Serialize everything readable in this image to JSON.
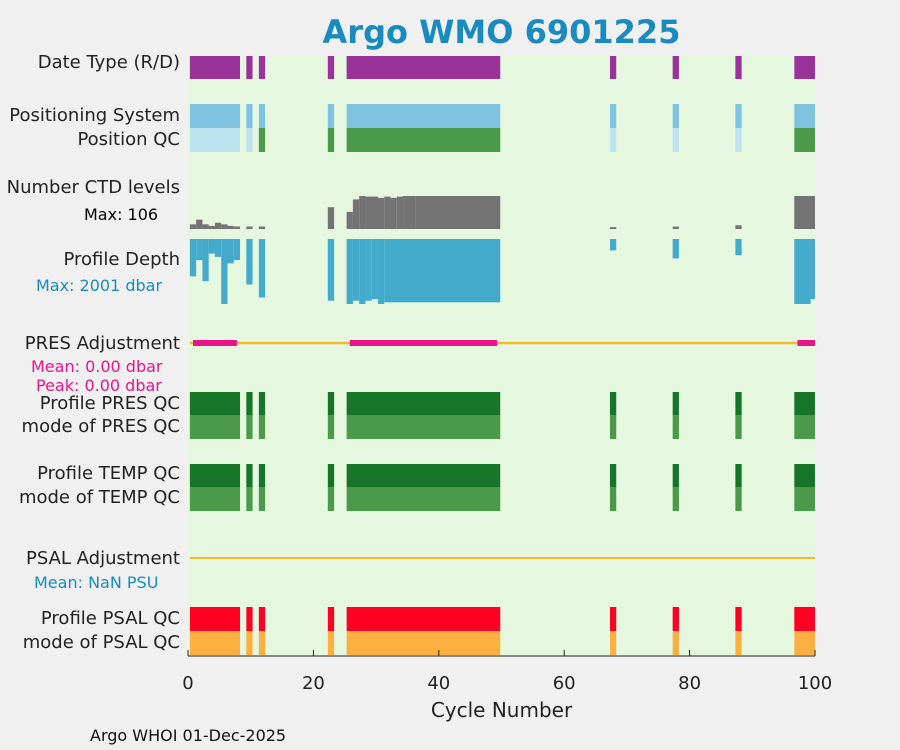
{
  "chart_data": {
    "type": "heatmap",
    "title": "Argo WMO 6901225",
    "xlabel": "Cycle Number",
    "xlim": [
      0,
      100
    ],
    "xticks": [
      "0",
      "20",
      "40",
      "60",
      "80",
      "100"
    ],
    "rows": [
      {
        "label": "Date Type (R/D)",
        "color": "#993399",
        "segments": [
          [
            0.3,
            8.3
          ],
          [
            9.3,
            10.3
          ],
          [
            11.3,
            12.3
          ],
          [
            22.3,
            23.3
          ],
          [
            25.3,
            49.8
          ],
          [
            67.3,
            68.3
          ],
          [
            77.3,
            78.3
          ],
          [
            87.3,
            88.3
          ],
          [
            96.7,
            100
          ]
        ]
      },
      {
        "label": "Positioning System",
        "color": "#80c3e0",
        "segments": [
          [
            0.3,
            8.3
          ],
          [
            9.3,
            10.3
          ],
          [
            11.3,
            12.3
          ],
          [
            22.3,
            23.3
          ],
          [
            25.3,
            49.8
          ],
          [
            67.3,
            68.3
          ],
          [
            77.3,
            78.3
          ],
          [
            87.3,
            88.3
          ],
          [
            96.7,
            100
          ]
        ]
      },
      {
        "label": "Position QC",
        "segments": [
          {
            "range": [
              0.3,
              8.3
            ],
            "color": "#bee3f0"
          },
          {
            "range": [
              9.3,
              10.3
            ],
            "color": "#bee3f0"
          },
          {
            "range": [
              11.3,
              12.3
            ],
            "color": "#4a9a4a"
          },
          {
            "range": [
              22.3,
              23.3
            ],
            "color": "#4a9a4a"
          },
          {
            "range": [
              25.3,
              49.8
            ],
            "color": "#4a9a4a"
          },
          {
            "range": [
              67.3,
              68.3
            ],
            "color": "#bee3f0"
          },
          {
            "range": [
              77.3,
              78.3
            ],
            "color": "#bee3f0"
          },
          {
            "range": [
              87.3,
              88.3
            ],
            "color": "#bee3f0"
          },
          {
            "range": [
              96.7,
              100
            ],
            "color": "#4a9a4a"
          }
        ]
      },
      {
        "label": "Profile PRES QC",
        "color": "#17752a",
        "segments": [
          [
            0.3,
            8.3
          ],
          [
            9.3,
            10.3
          ],
          [
            11.3,
            12.3
          ],
          [
            22.3,
            23.3
          ],
          [
            25.3,
            49.8
          ],
          [
            67.3,
            68.3
          ],
          [
            77.3,
            78.3
          ],
          [
            87.3,
            88.3
          ],
          [
            96.7,
            100
          ]
        ]
      },
      {
        "label": "mode of PRES QC",
        "color": "#4a9a4a",
        "segments": [
          [
            0.3,
            8.3
          ],
          [
            9.3,
            10.3
          ],
          [
            11.3,
            12.3
          ],
          [
            22.3,
            23.3
          ],
          [
            25.3,
            49.8
          ],
          [
            67.3,
            68.3
          ],
          [
            77.3,
            78.3
          ],
          [
            87.3,
            88.3
          ],
          [
            96.7,
            100
          ]
        ]
      },
      {
        "label": "Profile TEMP QC",
        "color": "#17752a",
        "segments": [
          [
            0.3,
            8.3
          ],
          [
            9.3,
            10.3
          ],
          [
            11.3,
            12.3
          ],
          [
            22.3,
            23.3
          ],
          [
            25.3,
            49.8
          ],
          [
            67.3,
            68.3
          ],
          [
            77.3,
            78.3
          ],
          [
            87.3,
            88.3
          ],
          [
            96.7,
            100
          ]
        ]
      },
      {
        "label": "mode of TEMP QC",
        "color": "#4a9a4a",
        "segments": [
          [
            0.3,
            8.3
          ],
          [
            9.3,
            10.3
          ],
          [
            11.3,
            12.3
          ],
          [
            22.3,
            23.3
          ],
          [
            25.3,
            49.8
          ],
          [
            67.3,
            68.3
          ],
          [
            77.3,
            78.3
          ],
          [
            87.3,
            88.3
          ],
          [
            96.7,
            100
          ]
        ]
      },
      {
        "label": "Profile PSAL QC",
        "color": "#ff0022",
        "segments": [
          [
            0.3,
            8.3
          ],
          [
            9.3,
            10.3
          ],
          [
            11.3,
            12.3
          ],
          [
            22.3,
            23.3
          ],
          [
            25.3,
            49.8
          ],
          [
            67.3,
            68.3
          ],
          [
            77.3,
            78.3
          ],
          [
            87.3,
            88.3
          ],
          [
            96.7,
            100
          ]
        ]
      },
      {
        "label": "mode of PSAL QC",
        "color": "#fbb040",
        "segments": [
          [
            0.3,
            8.3
          ],
          [
            9.3,
            10.3
          ],
          [
            11.3,
            12.3
          ],
          [
            22.3,
            23.3
          ],
          [
            25.3,
            49.8
          ],
          [
            67.3,
            68.3
          ],
          [
            77.3,
            78.3
          ],
          [
            87.3,
            88.3
          ],
          [
            96.7,
            100
          ]
        ]
      }
    ],
    "ctd_levels": {
      "label": "Number CTD levels",
      "max_label": "Max: 106",
      "max": 106,
      "color": "#737373",
      "bars": [
        [
          0.3,
          1.3,
          15
        ],
        [
          1.3,
          2.3,
          30
        ],
        [
          2.3,
          3.3,
          15
        ],
        [
          3.3,
          4.3,
          10
        ],
        [
          4.3,
          5.3,
          20
        ],
        [
          5.3,
          6.3,
          15
        ],
        [
          6.3,
          7.3,
          10
        ],
        [
          7.3,
          8.3,
          8
        ],
        [
          9.3,
          10.3,
          8
        ],
        [
          11.3,
          12.3,
          8
        ],
        [
          22.3,
          23.3,
          70
        ],
        [
          25.3,
          26.3,
          55
        ],
        [
          26.3,
          27.3,
          95
        ],
        [
          27.3,
          28.3,
          106
        ],
        [
          28.3,
          30.3,
          104
        ],
        [
          30.3,
          31.3,
          100
        ],
        [
          31.3,
          32.3,
          104
        ],
        [
          32.3,
          33.3,
          100
        ],
        [
          33.3,
          34.3,
          104
        ],
        [
          34.3,
          36.3,
          106
        ],
        [
          36.3,
          49.8,
          106
        ],
        [
          67.3,
          68.3,
          6
        ],
        [
          77.3,
          78.3,
          8
        ],
        [
          87.3,
          88.3,
          12
        ],
        [
          96.7,
          100,
          106
        ]
      ]
    },
    "profile_depth": {
      "label": "Profile Depth",
      "max_label": "Max: 2001 dbar",
      "max": 2001,
      "color": "#44aacc",
      "bars": [
        [
          0.3,
          1.3,
          1150
        ],
        [
          1.3,
          2.3,
          650
        ],
        [
          2.3,
          3.3,
          1300
        ],
        [
          3.3,
          4.3,
          450
        ],
        [
          4.3,
          5.3,
          550
        ],
        [
          5.3,
          6.3,
          2001
        ],
        [
          6.3,
          7.3,
          750
        ],
        [
          7.3,
          8.3,
          650
        ],
        [
          9.3,
          10.3,
          1400
        ],
        [
          11.3,
          12.3,
          1800
        ],
        [
          22.3,
          23.3,
          1900
        ],
        [
          25.3,
          26.3,
          2001
        ],
        [
          26.3,
          27.3,
          1900
        ],
        [
          27.3,
          28.3,
          2001
        ],
        [
          28.3,
          29.3,
          1900
        ],
        [
          29.3,
          30.3,
          1850
        ],
        [
          30.3,
          31.3,
          2001
        ],
        [
          31.3,
          49.8,
          1950
        ],
        [
          67.3,
          68.3,
          350
        ],
        [
          77.3,
          78.3,
          600
        ],
        [
          87.3,
          88.3,
          500
        ],
        [
          96.7,
          99.3,
          2001
        ],
        [
          99.3,
          100,
          1850
        ]
      ]
    },
    "pres_adjustment": {
      "label": "PRES Adjustment",
      "mean_label": "Mean: 0.00 dbar",
      "peak_label": "Peak: 0.00 dbar",
      "line_color": "#f5b82e",
      "highlight_color": "#e8158a",
      "highlights": [
        [
          0.8,
          7.8
        ],
        [
          25.8,
          49.3
        ],
        [
          97.2,
          100
        ]
      ]
    },
    "psal_adjustment": {
      "label": "PSAL Adjustment",
      "mean_label": "Mean:  NaN PSU",
      "line_color": "#f5b82e"
    },
    "footer": "Argo WHOI 01-Dec-2025"
  }
}
